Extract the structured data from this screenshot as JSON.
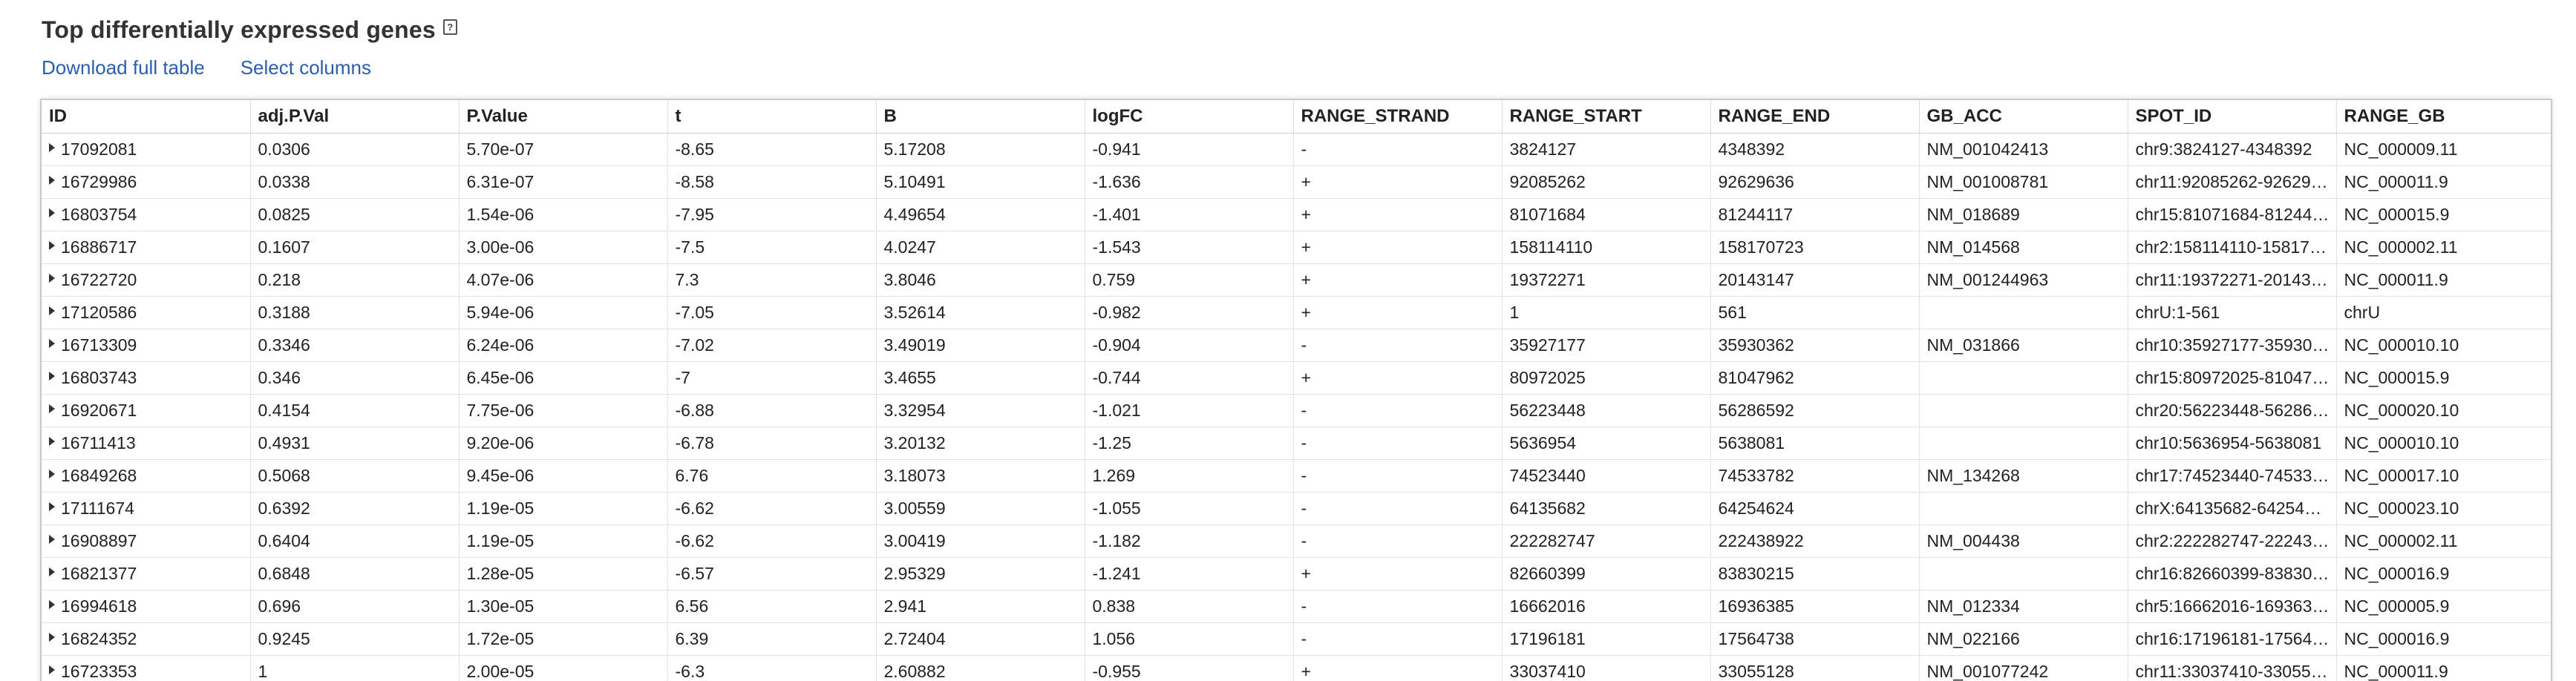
{
  "heading": {
    "title": "Top differentially expressed genes",
    "help_glyph": "?"
  },
  "links": {
    "download": "Download full table",
    "select_columns": "Select columns"
  },
  "icons": {
    "help": "help-icon",
    "row_expander": "triangle-right-icon"
  },
  "colors": {
    "link": "#2a5db0",
    "border": "#c9c9c9"
  },
  "table": {
    "columns": [
      "ID",
      "adj.P.Val",
      "P.Value",
      "t",
      "B",
      "logFC",
      "RANGE_STRAND",
      "RANGE_START",
      "RANGE_END",
      "GB_ACC",
      "SPOT_ID",
      "RANGE_GB"
    ],
    "rows": [
      [
        "17092081",
        "0.0306",
        "5.70e-07",
        "-8.65",
        "5.17208",
        "-0.941",
        "-",
        "3824127",
        "4348392",
        "NM_001042413",
        "chr9:3824127-4348392",
        "NC_000009.11"
      ],
      [
        "16729986",
        "0.0338",
        "6.31e-07",
        "-8.58",
        "5.10491",
        "-1.636",
        "+",
        "92085262",
        "92629636",
        "NM_001008781",
        "chr11:92085262-92629…",
        "NC_000011.9"
      ],
      [
        "16803754",
        "0.0825",
        "1.54e-06",
        "-7.95",
        "4.49654",
        "-1.401",
        "+",
        "81071684",
        "81244117",
        "NM_018689",
        "chr15:81071684-81244…",
        "NC_000015.9"
      ],
      [
        "16886717",
        "0.1607",
        "3.00e-06",
        "-7.5",
        "4.0247",
        "-1.543",
        "+",
        "158114110",
        "158170723",
        "NM_014568",
        "chr2:158114110-15817…",
        "NC_000002.11"
      ],
      [
        "16722720",
        "0.218",
        "4.07e-06",
        "7.3",
        "3.8046",
        "0.759",
        "+",
        "19372271",
        "20143147",
        "NM_001244963",
        "chr11:19372271-20143…",
        "NC_000011.9"
      ],
      [
        "17120586",
        "0.3188",
        "5.94e-06",
        "-7.05",
        "3.52614",
        "-0.982",
        "+",
        "1",
        "561",
        "",
        "chrU:1-561",
        "chrU"
      ],
      [
        "16713309",
        "0.3346",
        "6.24e-06",
        "-7.02",
        "3.49019",
        "-0.904",
        "-",
        "35927177",
        "35930362",
        "NM_031866",
        "chr10:35927177-35930…",
        "NC_000010.10"
      ],
      [
        "16803743",
        "0.346",
        "6.45e-06",
        "-7",
        "3.4655",
        "-0.744",
        "+",
        "80972025",
        "81047962",
        "",
        "chr15:80972025-81047…",
        "NC_000015.9"
      ],
      [
        "16920671",
        "0.4154",
        "7.75e-06",
        "-6.88",
        "3.32954",
        "-1.021",
        "-",
        "56223448",
        "56286592",
        "",
        "chr20:56223448-56286…",
        "NC_000020.10"
      ],
      [
        "16711413",
        "0.4931",
        "9.20e-06",
        "-6.78",
        "3.20132",
        "-1.25",
        "-",
        "5636954",
        "5638081",
        "",
        "chr10:5636954-5638081",
        "NC_000010.10"
      ],
      [
        "16849268",
        "0.5068",
        "9.45e-06",
        "6.76",
        "3.18073",
        "1.269",
        "-",
        "74523440",
        "74533782",
        "NM_134268",
        "chr17:74523440-74533…",
        "NC_000017.10"
      ],
      [
        "17111674",
        "0.6392",
        "1.19e-05",
        "-6.62",
        "3.00559",
        "-1.055",
        "-",
        "64135682",
        "64254624",
        "",
        "chrX:64135682-64254…",
        "NC_000023.10"
      ],
      [
        "16908897",
        "0.6404",
        "1.19e-05",
        "-6.62",
        "3.00419",
        "-1.182",
        "-",
        "222282747",
        "222438922",
        "NM_004438",
        "chr2:222282747-22243…",
        "NC_000002.11"
      ],
      [
        "16821377",
        "0.6848",
        "1.28e-05",
        "-6.57",
        "2.95329",
        "-1.241",
        "+",
        "82660399",
        "83830215",
        "",
        "chr16:82660399-83830…",
        "NC_000016.9"
      ],
      [
        "16994618",
        "0.696",
        "1.30e-05",
        "6.56",
        "2.941",
        "0.838",
        "-",
        "16662016",
        "16936385",
        "NM_012334",
        "chr5:16662016-169363…",
        "NC_000005.9"
      ],
      [
        "16824352",
        "0.9245",
        "1.72e-05",
        "6.39",
        "2.72404",
        "1.056",
        "-",
        "17196181",
        "17564738",
        "NM_022166",
        "chr16:17196181-17564…",
        "NC_000016.9"
      ],
      [
        "16723353",
        "1",
        "2.00e-05",
        "-6.3",
        "2.60882",
        "-0.955",
        "+",
        "33037410",
        "33055128",
        "NM_001077242",
        "chr11:33037410-33055…",
        "NC_000011.9"
      ]
    ]
  }
}
